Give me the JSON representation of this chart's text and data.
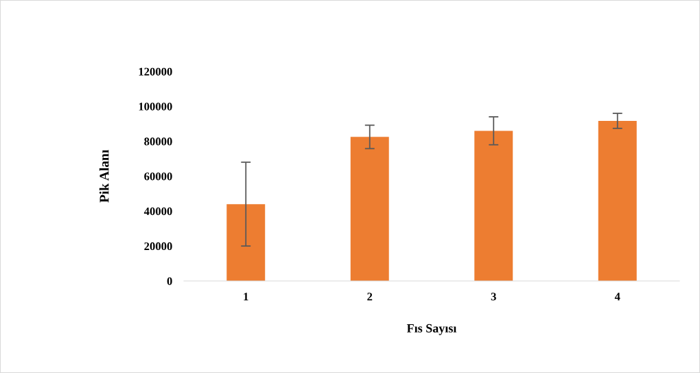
{
  "chart_data": {
    "type": "bar",
    "xlabel": "Fıs Sayısı",
    "ylabel": "Pik Alanı",
    "categories": [
      "1",
      "2",
      "3",
      "4"
    ],
    "values": [
      44000,
      82500,
      86000,
      91700
    ],
    "errors": [
      24000,
      6700,
      8000,
      4300
    ],
    "color": "#ed7d31",
    "ylim": [
      0,
      120000
    ],
    "yticks": [
      0,
      20000,
      40000,
      60000,
      80000,
      100000,
      120000
    ],
    "grid": false,
    "legend": false
  }
}
